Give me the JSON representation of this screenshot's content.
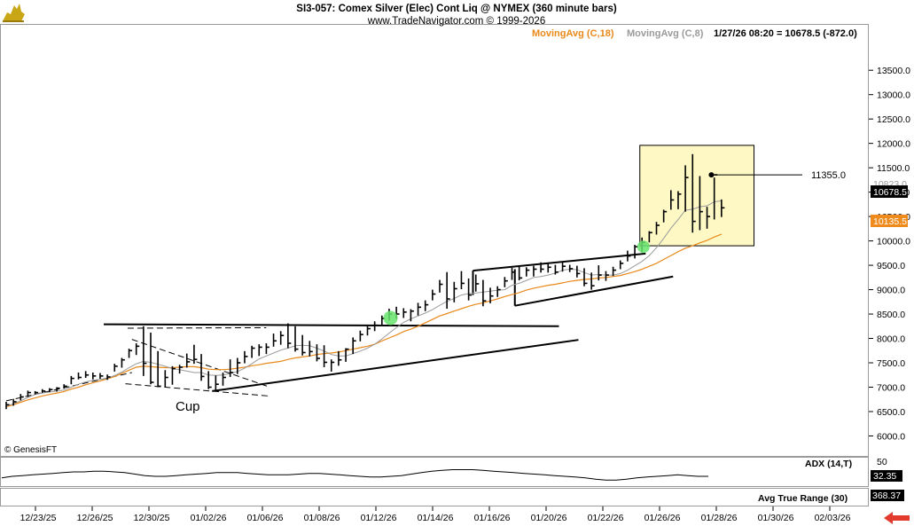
{
  "header": {
    "title": "SI3-057:  Comex Silver (Elec) Cont Liq @ NYMEX  (360 minute bars)",
    "subtitle": "www.TradeNavigator.com © 1999-2026",
    "legend_ma18": "MovingAvg (C,18)",
    "legend_ma8": "MovingAvg (C,8)",
    "quote": "1/27/26 08:20 = 10678.5 (-872.0)"
  },
  "watermark": "© GenesisFT",
  "colors": {
    "ma18": "#e8891a",
    "ma8": "#9a9a9a",
    "bars": "#000000",
    "highlight": "#fdf8c4",
    "green_dot": "#66e36b",
    "last_price_bg": "#000000",
    "ma18_bg": "#ef8b1c",
    "arrow": "#e23b2e",
    "logo": "#c9a616"
  },
  "icons": {
    "logo": "bull-logo-icon",
    "arrow": "red-arrow-left-icon"
  },
  "annotations": {
    "cup": "Cup",
    "target": "11355.0"
  },
  "price_tags": {
    "high": "10823.0",
    "last": "10678.5",
    "ma18": "10135.5"
  },
  "adx": {
    "label": "ADX (14,T)",
    "tick": "50",
    "value": "32.35",
    "values": [
      30,
      32,
      33,
      34,
      35,
      36,
      37,
      38,
      38,
      39,
      39,
      38,
      37,
      35,
      33,
      32,
      32,
      33,
      34,
      35,
      36,
      37,
      37,
      37,
      36,
      35,
      34,
      34,
      34,
      35,
      36,
      36,
      35,
      34,
      33,
      32,
      31,
      31,
      32,
      33,
      35,
      37,
      39,
      40,
      41,
      41,
      41,
      40,
      39,
      38,
      37,
      36,
      35,
      34,
      33,
      32,
      31,
      30,
      28,
      27,
      27,
      28,
      30,
      31,
      32,
      33,
      34,
      33,
      32,
      32
    ]
  },
  "atr": {
    "label": "Avg True Range (30)",
    "value": "368.37"
  },
  "chart_data": {
    "type": "ohlc",
    "title": "SI3-057:  Comex Silver (Elec) Cont Liq @ NYMEX  (360 minute bars)",
    "ylim": [
      5600,
      13700
    ],
    "yticks": [
      "6000.0",
      "6500.0",
      "7000.0",
      "7500.0",
      "8000.0",
      "8500.0",
      "9000.0",
      "9500.0",
      "10000.0",
      "10500.0",
      "11000.0",
      "11500.0",
      "12000.0",
      "12500.0",
      "13000.0",
      "13500.0"
    ],
    "xticks": [
      "12/23/25",
      "12/26/25",
      "12/30/25",
      "01/02/26",
      "01/06/26",
      "01/08/26",
      "01/12/26",
      "01/14/26",
      "01/16/26",
      "01/20/26",
      "01/22/26",
      "01/26/26",
      "01/28/26",
      "01/30/26",
      "02/03/26"
    ],
    "bars": {
      "high": [
        6700,
        6760,
        6860,
        6930,
        6920,
        6960,
        6980,
        7000,
        7060,
        7230,
        7300,
        7330,
        7300,
        7290,
        7260,
        7480,
        7600,
        7790,
        7900,
        8250,
        8120,
        7740,
        7350,
        7430,
        7460,
        7690,
        7870,
        7680,
        7330,
        7240,
        7300,
        7570,
        7600,
        7740,
        7850,
        7880,
        7900,
        8100,
        8150,
        8310,
        8250,
        8070,
        7950,
        7880,
        7860,
        7570,
        7740,
        7800,
        8020,
        8160,
        8250,
        8350,
        8470,
        8610,
        8650,
        8620,
        8600,
        8730,
        8780,
        9000,
        9200,
        9360,
        9160,
        9380,
        9230,
        9310,
        9200,
        9040,
        9070,
        9260,
        9450,
        9470,
        9460,
        9490,
        9560,
        9540,
        9510,
        9570,
        9510,
        9490,
        9440,
        9350,
        9500,
        9380,
        9470,
        9600,
        9800,
        9920,
        10070,
        10200,
        10390,
        10640,
        11040,
        11020,
        11550,
        11780,
        11330,
        10700,
        11300,
        10850
      ],
      "low": [
        6550,
        6620,
        6730,
        6800,
        6850,
        6880,
        6900,
        6910,
        6970,
        7060,
        7160,
        7190,
        7160,
        7170,
        7150,
        7320,
        7400,
        7600,
        7660,
        7230,
        7060,
        7000,
        7000,
        7050,
        7280,
        7400,
        7480,
        7130,
        6960,
        6940,
        7030,
        7210,
        7270,
        7490,
        7600,
        7640,
        7680,
        7830,
        7870,
        7800,
        7730,
        7650,
        7630,
        7530,
        7410,
        7320,
        7440,
        7520,
        7680,
        7940,
        8060,
        8150,
        8260,
        8370,
        8400,
        8420,
        8350,
        8470,
        8560,
        8780,
        8940,
        8610,
        8740,
        9010,
        8780,
        8960,
        8660,
        8720,
        8850,
        9050,
        9200,
        9190,
        9270,
        9270,
        9350,
        9350,
        9310,
        9370,
        9360,
        9250,
        9070,
        9000,
        9190,
        9180,
        9280,
        9420,
        9580,
        9640,
        9780,
        9970,
        10130,
        10380,
        10640,
        10650,
        10600,
        10170,
        10220,
        10250,
        10440,
        10490
      ],
      "close": [
        6640,
        6700,
        6800,
        6890,
        6890,
        6920,
        6950,
        6980,
        7020,
        7180,
        7200,
        7250,
        7230,
        7230,
        7210,
        7430,
        7560,
        7750,
        7840,
        7490,
        7100,
        7020,
        7200,
        7380,
        7410,
        7520,
        7570,
        7220,
        7000,
        7060,
        7200,
        7300,
        7500,
        7630,
        7800,
        7820,
        7820,
        7950,
        8060,
        7900,
        7780,
        7710,
        7730,
        7590,
        7510,
        7510,
        7560,
        7780,
        7950,
        8080,
        8200,
        8270,
        8410,
        8500,
        8500,
        8540,
        8560,
        8640,
        8690,
        8910,
        9110,
        8810,
        9020,
        9130,
        8890,
        9120,
        8770,
        8870,
        9000,
        9180,
        9360,
        9240,
        9400,
        9420,
        9420,
        9460,
        9360,
        9480,
        9430,
        9330,
        9130,
        9080,
        9300,
        9300,
        9400,
        9540,
        9690,
        9880,
        9970,
        10170,
        10320,
        10600,
        10840,
        10960,
        11300,
        10400,
        10600,
        10500,
        11355,
        10678.5
      ]
    },
    "ma18": [
      6600,
      6640,
      6690,
      6740,
      6780,
      6820,
      6850,
      6880,
      6910,
      6960,
      7000,
      7050,
      7090,
      7130,
      7170,
      7220,
      7280,
      7350,
      7410,
      7430,
      7420,
      7410,
      7400,
      7400,
      7410,
      7420,
      7420,
      7400,
      7370,
      7360,
      7360,
      7370,
      7390,
      7410,
      7440,
      7460,
      7490,
      7510,
      7530,
      7570,
      7600,
      7620,
      7640,
      7670,
      7690,
      7700,
      7720,
      7750,
      7780,
      7810,
      7840,
      7880,
      7950,
      8010,
      8070,
      8140,
      8190,
      8250,
      8320,
      8390,
      8460,
      8510,
      8560,
      8610,
      8660,
      8700,
      8730,
      8770,
      8810,
      8860,
      8900,
      8940,
      8990,
      9030,
      9060,
      9090,
      9110,
      9140,
      9170,
      9190,
      9210,
      9220,
      9240,
      9250,
      9270,
      9290,
      9330,
      9370,
      9420,
      9480,
      9540,
      9620,
      9700,
      9780,
      9850,
      9900,
      9960,
      10010,
      10080,
      10135.5
    ],
    "ma8": [
      6610,
      6660,
      6720,
      6790,
      6850,
      6880,
      6900,
      6920,
      6940,
      7000,
      7060,
      7110,
      7140,
      7160,
      7180,
      7240,
      7310,
      7400,
      7480,
      7530,
      7510,
      7470,
      7430,
      7380,
      7360,
      7330,
      7300,
      7300,
      7250,
      7240,
      7250,
      7280,
      7320,
      7390,
      7480,
      7580,
      7640,
      7700,
      7760,
      7800,
      7850,
      7860,
      7850,
      7800,
      7740,
      7670,
      7640,
      7640,
      7690,
      7740,
      7800,
      7880,
      7990,
      8110,
      8220,
      8330,
      8400,
      8460,
      8520,
      8590,
      8680,
      8760,
      8820,
      8890,
      8920,
      8930,
      8950,
      8970,
      8990,
      9000,
      9090,
      9130,
      9190,
      9250,
      9270,
      9300,
      9340,
      9400,
      9420,
      9410,
      9350,
      9300,
      9310,
      9300,
      9300,
      9330,
      9400,
      9490,
      9580,
      9700,
      9860,
      10050,
      10260,
      10440,
      10630,
      10650,
      10700,
      10720,
      10800,
      10823
    ]
  }
}
